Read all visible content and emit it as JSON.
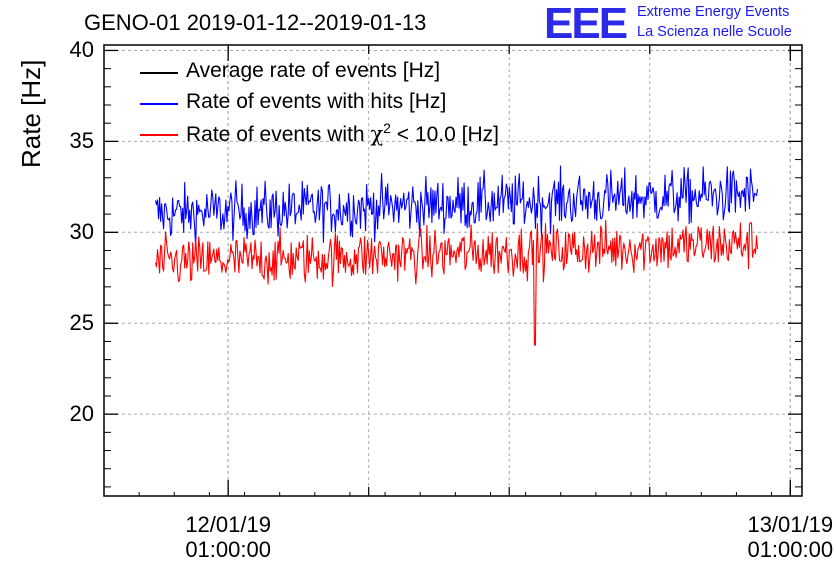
{
  "header": {
    "title": "GENO-01 2019-01-12--2019-01-13",
    "logo_text": "EEE",
    "logo_line1": "Extreme Energy Events",
    "logo_line2": "La Scienza nelle Scuole"
  },
  "chart_data": {
    "type": "line",
    "title": "GENO-01 2019-01-12--2019-01-13",
    "ylabel": "Rate [Hz]",
    "xlabel": "",
    "ylim": [
      15.5,
      40.3
    ],
    "yticks": [
      "20",
      "25",
      "30",
      "35",
      "40"
    ],
    "xticks": [
      {
        "date": "12/01/19",
        "time": "01:00:00"
      },
      {
        "date": "13/01/19",
        "time": "01:00:00"
      }
    ],
    "x_range_hours": [
      -4.3,
      25.5
    ],
    "grid": true,
    "legend_position": "top-left",
    "legend": {
      "avg": "Average rate of events [Hz]",
      "hits": "Rate of events with hits [Hz]",
      "chi_prefix": "Rate of events with ",
      "chi_symbol": "χ",
      "chi_exp": "2",
      "chi_suffix": " < 10.0 [Hz]"
    },
    "series": [
      {
        "name": "Average rate of events [Hz]",
        "color": "#000000",
        "values": []
      },
      {
        "name": "Rate of events with hits [Hz]",
        "color": "#0000ff",
        "x_start_hours": -2.1,
        "x_end_hours": 23.6,
        "samples": 600,
        "mean_start": 31.0,
        "mean_end": 32.1,
        "noise": 0.75
      },
      {
        "name": "Rate of events with χ2 < 10.0 [Hz]",
        "color": "#ff0000",
        "x_start_hours": -2.1,
        "x_end_hours": 23.6,
        "samples": 600,
        "mean_start": 28.3,
        "mean_end": 29.4,
        "noise": 0.7,
        "dip": {
          "x_hours": 14.1,
          "y": 23.8
        }
      }
    ]
  }
}
